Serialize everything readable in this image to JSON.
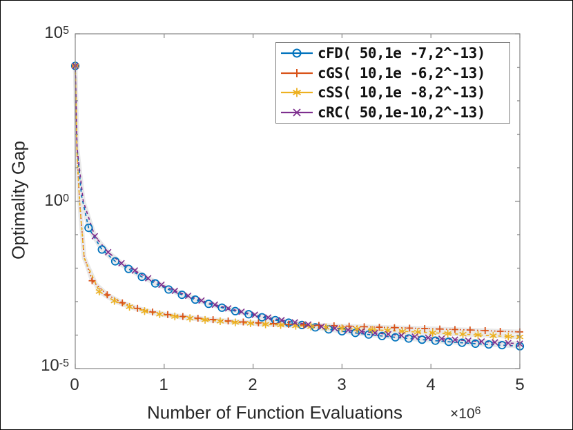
{
  "figure": {
    "background": "#ffffff",
    "axis_color": "#858585",
    "band_color": "#e9e9e9",
    "text_color": "#2b2b2b"
  },
  "axes": {
    "x": {
      "label": "Number of Function Evaluations",
      "multiplier": {
        "prefix": "×10",
        "exp": "6"
      },
      "ticks": [
        {
          "label": "0",
          "value": 0
        },
        {
          "label": "1",
          "value": 1
        },
        {
          "label": "2",
          "value": 2
        },
        {
          "label": "3",
          "value": 3
        },
        {
          "label": "4",
          "value": 4
        },
        {
          "label": "5",
          "value": 5
        }
      ]
    },
    "y": {
      "label": "Optimality Gap",
      "ticks": [
        {
          "base": "10",
          "exp": "5",
          "log_value": 5
        },
        {
          "base": "10",
          "exp": "0",
          "log_value": 0
        },
        {
          "base": "10",
          "exp": "-5",
          "log_value": -5
        }
      ]
    }
  },
  "chart_data": {
    "type": "line",
    "title": "",
    "xlabel": "Number of Function Evaluations",
    "x_multiplier": "×10^6",
    "ylabel": "Optimality Gap",
    "x_unit": 1000000,
    "xlim": [
      0,
      5
    ],
    "yscale": "log",
    "ylim": [
      1e-05,
      100000.0
    ],
    "y_tick_exponents": [
      5,
      0,
      -5
    ],
    "grid": false,
    "legend_position": "top-right",
    "series": [
      {
        "name": "cFD( 50,1e -7,2^-13)",
        "color": "#0072BD",
        "marker": "circle",
        "line_style": "dashed",
        "x": [
          0,
          0.02,
          0.07,
          0.15,
          0.3,
          0.45,
          0.6,
          0.75,
          0.9,
          1.05,
          1.2,
          1.35,
          1.5,
          1.65,
          1.8,
          1.95,
          2.1,
          2.25,
          2.4,
          2.55,
          2.7,
          2.85,
          3.0,
          3.15,
          3.3,
          3.45,
          3.6,
          3.75,
          3.9,
          4.05,
          4.2,
          4.35,
          4.5,
          4.65,
          4.8,
          5.0
        ],
        "y": [
          11000,
          40,
          1.5,
          0.16,
          0.036,
          0.016,
          0.0095,
          0.0055,
          0.0035,
          0.0023,
          0.0016,
          0.00115,
          0.00086,
          0.00066,
          0.00052,
          0.00042,
          0.00034,
          0.00028,
          0.000235,
          0.0002,
          0.00017,
          0.000148,
          0.00013,
          0.000116,
          0.000104,
          9.4e-05,
          8.6e-05,
          7.9e-05,
          7.3e-05,
          6.8e-05,
          6.3e-05,
          5.9e-05,
          5.55e-05,
          5.25e-05,
          5e-05,
          4.65e-05
        ]
      },
      {
        "name": "cGS( 10,1e -6,2^-13)",
        "color": "#D95319",
        "marker": "plus",
        "line_style": "dotted",
        "x": [
          0,
          0.02,
          0.05,
          0.1,
          0.19,
          0.36,
          0.53,
          0.7,
          0.87,
          1.04,
          1.21,
          1.38,
          1.55,
          1.72,
          1.89,
          2.06,
          2.23,
          2.4,
          2.57,
          2.74,
          2.91,
          3.08,
          3.25,
          3.42,
          3.59,
          3.76,
          3.93,
          4.1,
          4.27,
          4.44,
          4.61,
          4.78,
          5.0
        ],
        "y": [
          11000,
          25,
          0.9,
          0.022,
          0.0042,
          0.0016,
          0.00092,
          0.00063,
          0.00049,
          0.00041,
          0.00036,
          0.00032,
          0.00029,
          0.000265,
          0.000247,
          0.000232,
          0.00022,
          0.00021,
          0.000202,
          0.000196,
          0.00019,
          0.000184,
          0.000178,
          0.000172,
          0.000167,
          0.000162,
          0.000157,
          0.000152,
          0.000147,
          0.000142,
          0.000136,
          0.00013,
          0.000125
        ]
      },
      {
        "name": "cSS( 10,1e -8,2^-13)",
        "color": "#EDB120",
        "marker": "asterisk",
        "line_style": "dashed",
        "x": [
          0,
          0.02,
          0.05,
          0.1,
          0.27,
          0.44,
          0.61,
          0.78,
          0.95,
          1.12,
          1.29,
          1.46,
          1.63,
          1.8,
          1.97,
          2.14,
          2.31,
          2.48,
          2.65,
          2.82,
          3.0,
          3.17,
          3.34,
          3.51,
          3.68,
          3.85,
          4.02,
          4.19,
          4.36,
          4.53,
          4.7,
          4.87,
          5.0
        ],
        "y": [
          11000,
          25,
          0.9,
          0.02,
          0.002,
          0.00105,
          0.0007,
          0.00052,
          0.00042,
          0.00036,
          0.00032,
          0.000285,
          0.00026,
          0.00024,
          0.000225,
          0.00021,
          0.0002,
          0.00019,
          0.00018,
          0.00017,
          0.00016,
          0.000152,
          0.000144,
          0.000137,
          0.00013,
          0.000123,
          0.000117,
          0.000111,
          0.000106,
          0.000101,
          9.6e-05,
          9.1e-05,
          8.8e-05
        ]
      },
      {
        "name": "cRC( 50,1e-10,2^-13)",
        "color": "#7E2F8E",
        "marker": "x",
        "line_style": "dashed",
        "x": [
          0,
          0.02,
          0.09,
          0.22,
          0.37,
          0.52,
          0.67,
          0.82,
          0.97,
          1.12,
          1.27,
          1.42,
          1.57,
          1.72,
          1.87,
          2.02,
          2.17,
          2.32,
          2.47,
          2.62,
          2.77,
          2.92,
          3.07,
          3.22,
          3.37,
          3.52,
          3.67,
          3.82,
          3.97,
          4.12,
          4.27,
          4.42,
          4.57,
          4.72,
          4.87,
          5.0
        ],
        "y": [
          11000,
          40,
          1.0,
          0.09,
          0.03,
          0.014,
          0.0085,
          0.005,
          0.0032,
          0.0021,
          0.0015,
          0.00108,
          0.00081,
          0.00063,
          0.0005,
          0.000405,
          0.000335,
          0.00028,
          0.00024,
          0.000207,
          0.00018,
          0.000159,
          0.000142,
          0.000128,
          0.000116,
          0.000106,
          9.75e-05,
          9e-05,
          8.35e-05,
          7.78e-05,
          7.28e-05,
          6.83e-05,
          6.43e-05,
          6.08e-05,
          5.78e-05,
          5.51e-05
        ]
      }
    ]
  }
}
